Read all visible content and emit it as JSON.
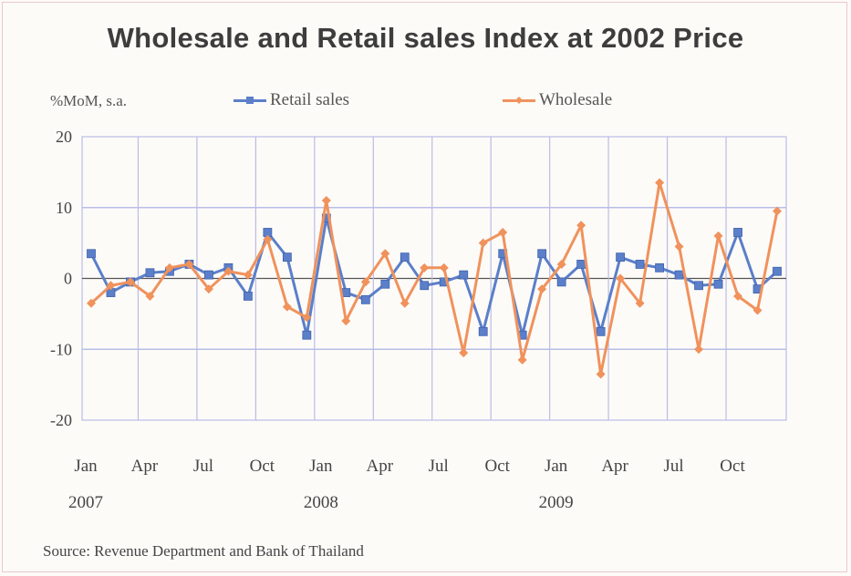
{
  "page": {
    "title": "Wholesale and Retail sales Index at 2002 Price",
    "unit_label": "%MoM, s.a.",
    "source": "Source: Revenue Department and Bank of Thailand"
  },
  "colors": {
    "retail": "#5b7fc9",
    "wholesale": "#f0925c",
    "grid": "#b9bde6",
    "zero_line": "#555555"
  },
  "chart_data": {
    "type": "line",
    "title": "Wholesale and Retail sales Index at 2002 Price",
    "ylabel": "%MoM, s.a.",
    "ylim": [
      -20,
      20
    ],
    "yticks": [
      20,
      10,
      0,
      -10,
      -20
    ],
    "ytick_labels": [
      "20",
      "10",
      "0",
      "-10",
      "-20"
    ],
    "grid": true,
    "legend_position": "top",
    "x": [
      "2007-01",
      "2007-02",
      "2007-03",
      "2007-04",
      "2007-05",
      "2007-06",
      "2007-07",
      "2007-08",
      "2007-09",
      "2007-10",
      "2007-11",
      "2007-12",
      "2008-01",
      "2008-02",
      "2008-03",
      "2008-04",
      "2008-05",
      "2008-06",
      "2008-07",
      "2008-08",
      "2008-09",
      "2008-10",
      "2008-11",
      "2008-12",
      "2009-01",
      "2009-02",
      "2009-03",
      "2009-04",
      "2009-05",
      "2009-06",
      "2009-07",
      "2009-08",
      "2009-09",
      "2009-10",
      "2009-11",
      "2009-12"
    ],
    "xtick_labels": [
      {
        "label": "Jan",
        "month": 0
      },
      {
        "label": "Apr",
        "month": 3
      },
      {
        "label": "Jul",
        "month": 6
      },
      {
        "label": "Oct",
        "month": 9
      },
      {
        "label": "Jan",
        "month": 12
      },
      {
        "label": "Apr",
        "month": 15
      },
      {
        "label": "Jul",
        "month": 18
      },
      {
        "label": "Oct",
        "month": 21
      },
      {
        "label": "Jan",
        "month": 24
      },
      {
        "label": "Apr",
        "month": 27
      },
      {
        "label": "Jul",
        "month": 30
      },
      {
        "label": "Oct",
        "month": 33
      }
    ],
    "year_labels": [
      {
        "label": "2007",
        "month": 0
      },
      {
        "label": "2008",
        "month": 12
      },
      {
        "label": "2009",
        "month": 24
      }
    ],
    "series": [
      {
        "name": "Retail sales",
        "values": [
          3.5,
          -2.0,
          -0.5,
          0.8,
          1.0,
          2.0,
          0.5,
          1.5,
          -2.5,
          6.5,
          3.0,
          -8.0,
          8.5,
          -2.0,
          -3.0,
          -0.8,
          3.0,
          -1.0,
          -0.5,
          0.5,
          -7.5,
          3.5,
          -8.0,
          3.5,
          -0.5,
          2.0,
          -7.5,
          3.0,
          2.0,
          1.5,
          0.5,
          -1.0,
          -0.8,
          6.5,
          -1.5,
          1.0
        ]
      },
      {
        "name": "Wholesale",
        "values": [
          -3.5,
          -1.0,
          -0.5,
          -2.5,
          1.5,
          2.0,
          -1.5,
          1.0,
          0.5,
          5.5,
          -4.0,
          -5.5,
          11.0,
          -6.0,
          -0.5,
          3.5,
          -3.5,
          1.5,
          1.5,
          -10.5,
          5.0,
          6.5,
          -11.5,
          -1.5,
          2.0,
          7.5,
          -13.5,
          0.0,
          -3.5,
          13.5,
          4.5,
          -10.0,
          6.0,
          -2.5,
          -4.5,
          9.5
        ]
      }
    ]
  }
}
